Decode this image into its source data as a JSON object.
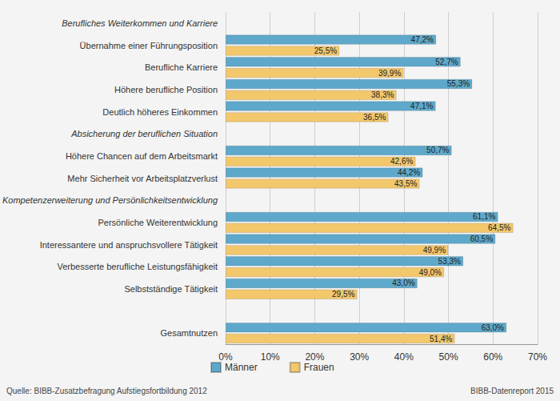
{
  "chart_data": {
    "type": "bar",
    "orientation": "horizontal",
    "categories": [
      "Berufliches Weiterkommen und Karriere",
      "Übernahme einer Führungsposition",
      "Berufliche Karriere",
      "Höhere berufliche Position",
      "Deutlich höheres Einkommen",
      "Absicherung der beruflichen Situation",
      "Höhere Chancen auf dem Arbeitsmarkt",
      "Mehr Sicherheit vor Arbeitsplatzverlust",
      "Kompetenzerweiterung und Persönlichkeitsentwicklung",
      "Persönliche Weiterentwicklung",
      "Interessantere und anspruchsvollere Tätigkeit",
      "Verbesserte berufliche Leistungsfähigkeit",
      "Selbstständige Tätigkeit",
      null,
      "Gesamtnutzen"
    ],
    "series": [
      {
        "name": "Männer",
        "color": "#5ea9cb",
        "values": [
          null,
          47.2,
          52.7,
          55.3,
          47.1,
          null,
          50.7,
          44.2,
          null,
          61.1,
          60.5,
          53.3,
          43.0,
          null,
          63.0
        ],
        "value_labels": [
          null,
          "47,2%",
          "52,7%",
          "55,3%",
          "47,1%",
          null,
          "50,7%",
          "44,2%",
          null,
          "61,1%",
          "60,5%",
          "53,3%",
          "43,0%",
          null,
          "63,0%"
        ]
      },
      {
        "name": "Frauen",
        "color": "#f3c86c",
        "values": [
          null,
          25.5,
          39.9,
          38.3,
          36.5,
          null,
          42.6,
          43.5,
          null,
          64.5,
          49.9,
          49.0,
          29.5,
          null,
          51.4
        ],
        "value_labels": [
          null,
          "25,5%",
          "39,9%",
          "38,3%",
          "36,5%",
          null,
          "42,6%",
          "43,5%",
          null,
          "64,5%",
          "49,9%",
          "49,0%",
          "29,5%",
          null,
          "51,4%"
        ]
      }
    ],
    "xlim": [
      0,
      70
    ],
    "xticks": [
      {
        "value": 0,
        "label": "0%"
      },
      {
        "value": 10,
        "label": "10%"
      },
      {
        "value": 20,
        "label": "20%"
      },
      {
        "value": 30,
        "label": "30%"
      },
      {
        "value": 40,
        "label": "40%"
      },
      {
        "value": 50,
        "label": "50%"
      },
      {
        "value": 60,
        "label": "60%"
      },
      {
        "value": 70,
        "label": "70%"
      }
    ],
    "grid": true,
    "legend": "bottom-left",
    "data_labels": true,
    "annotations": [
      "Quelle: BIBB-Zusatzbefragung Aufstiegsfortbildung 2012",
      "BIBB-Datenreport 2015"
    ]
  }
}
